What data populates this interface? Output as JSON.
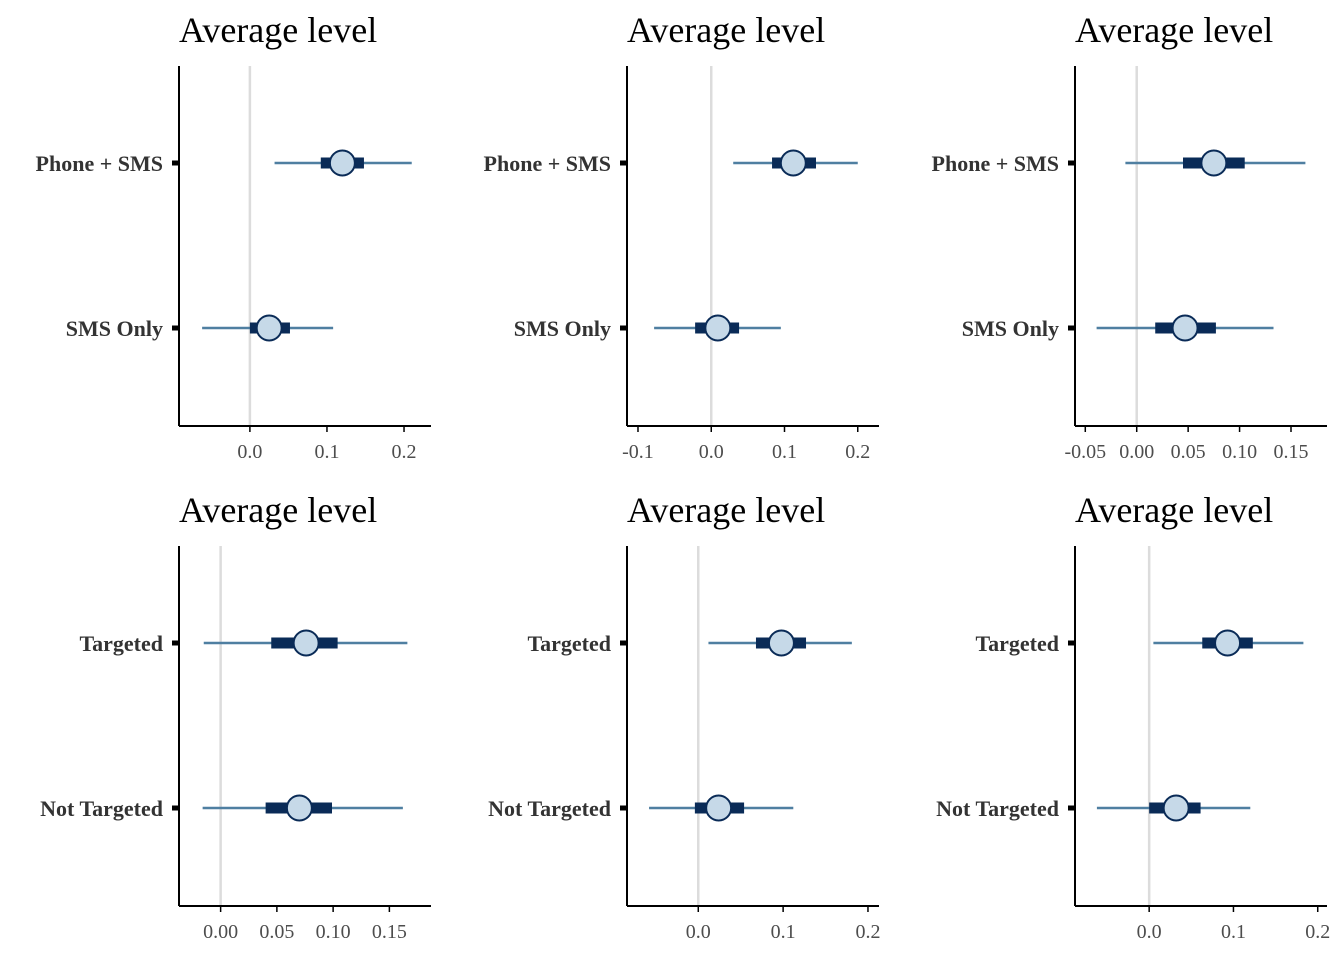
{
  "chart_data": [
    {
      "type": "interval",
      "title": "Average level",
      "categories": [
        "Phone + SMS",
        "SMS Only"
      ],
      "estimates": [
        0.12,
        0.025
      ],
      "inner_interval": [
        [
          0.092,
          0.148
        ],
        [
          0.0,
          0.052
        ]
      ],
      "outer_interval": [
        [
          0.032,
          0.21
        ],
        [
          -0.062,
          0.108
        ]
      ],
      "xlim": [
        -0.092,
        0.235
      ],
      "xticks": [
        0.0,
        0.1,
        0.2
      ],
      "xtick_labels": [
        "0.0",
        "0.1",
        "0.2"
      ],
      "reference_line": 0
    },
    {
      "type": "interval",
      "title": "Average level",
      "categories": [
        "Phone + SMS",
        "SMS Only"
      ],
      "estimates": [
        0.112,
        0.009
      ],
      "inner_interval": [
        [
          0.083,
          0.143
        ],
        [
          -0.022,
          0.038
        ]
      ],
      "outer_interval": [
        [
          0.03,
          0.2
        ],
        [
          -0.078,
          0.095
        ]
      ],
      "xlim": [
        -0.115,
        0.229
      ],
      "xticks": [
        -0.1,
        0.0,
        0.1,
        0.2
      ],
      "xtick_labels": [
        "-0.1",
        "0.0",
        "0.1",
        "0.2"
      ],
      "reference_line": 0
    },
    {
      "type": "interval",
      "title": "Average level",
      "categories": [
        "Phone + SMS",
        "SMS Only"
      ],
      "estimates": [
        0.075,
        0.047
      ],
      "inner_interval": [
        [
          0.045,
          0.105
        ],
        [
          0.018,
          0.077
        ]
      ],
      "outer_interval": [
        [
          -0.011,
          0.164
        ],
        [
          -0.039,
          0.133
        ]
      ],
      "xlim": [
        -0.06,
        0.185
      ],
      "xticks": [
        -0.05,
        0.0,
        0.05,
        0.1,
        0.15
      ],
      "xtick_labels": [
        "-0.05",
        "0.00",
        "0.05",
        "0.10",
        "0.15"
      ],
      "reference_line": 0
    },
    {
      "type": "interval",
      "title": "Average level",
      "categories": [
        "Targeted",
        "Not Targeted"
      ],
      "estimates": [
        0.076,
        0.07
      ],
      "inner_interval": [
        [
          0.045,
          0.104
        ],
        [
          0.04,
          0.099
        ]
      ],
      "outer_interval": [
        [
          -0.015,
          0.166
        ],
        [
          -0.016,
          0.162
        ]
      ],
      "xlim": [
        -0.037,
        0.187
      ],
      "xticks": [
        0.0,
        0.05,
        0.1,
        0.15
      ],
      "xtick_labels": [
        "0.00",
        "0.05",
        "0.10",
        "0.15"
      ],
      "reference_line": 0
    },
    {
      "type": "interval",
      "title": "Average level",
      "categories": [
        "Targeted",
        "Not Targeted"
      ],
      "estimates": [
        0.098,
        0.024
      ],
      "inner_interval": [
        [
          0.068,
          0.127
        ],
        [
          -0.004,
          0.054
        ]
      ],
      "outer_interval": [
        [
          0.012,
          0.181
        ],
        [
          -0.058,
          0.112
        ]
      ],
      "xlim": [
        -0.084,
        0.213
      ],
      "xticks": [
        0.0,
        0.1,
        0.2
      ],
      "xtick_labels": [
        "0.0",
        "0.1",
        "0.2"
      ],
      "reference_line": 0
    },
    {
      "type": "interval",
      "title": "Average level",
      "categories": [
        "Targeted",
        "Not Targeted"
      ],
      "estimates": [
        0.093,
        0.032
      ],
      "inner_interval": [
        [
          0.063,
          0.123
        ],
        [
          0.0,
          0.061
        ]
      ],
      "outer_interval": [
        [
          0.005,
          0.183
        ],
        [
          -0.062,
          0.12
        ]
      ],
      "xlim": [
        -0.088,
        0.211
      ],
      "xticks": [
        0.0,
        0.1,
        0.2
      ],
      "xtick_labels": [
        "0.0",
        "0.1",
        "0.2"
      ],
      "reference_line": 0
    }
  ],
  "colors": {
    "outer_line": "#4f7fa1",
    "inner_bar": "#0a2b57",
    "point_fill": "#c6d9e8",
    "point_stroke": "#0a2b57",
    "zero_line": "#dcdcdc",
    "axis": "#000000"
  }
}
